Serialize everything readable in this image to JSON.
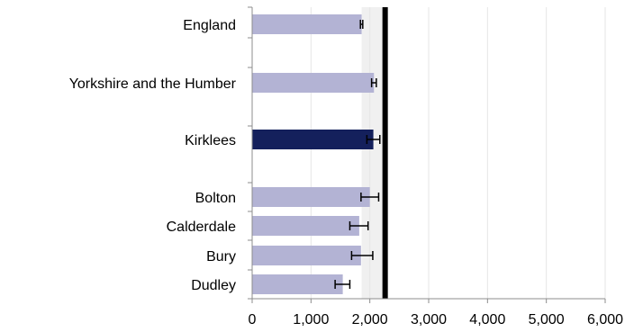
{
  "chart_data": {
    "type": "bar",
    "orientation": "horizontal",
    "title": "",
    "xlabel": "",
    "ylabel": "",
    "xlim": [
      0,
      6000
    ],
    "x_ticks": [
      0,
      1000,
      2000,
      3000,
      4000,
      5000,
      6000
    ],
    "x_tick_labels": [
      "0",
      "1,000",
      "2,000",
      "3,000",
      "4,000",
      "5,000",
      "6,000"
    ],
    "grid": "vertical gridlines",
    "reference_line": {
      "value": 2260,
      "color": "#000000"
    },
    "reference_band": {
      "from": 1860,
      "to": 2260,
      "color": "#f0f0f0"
    },
    "bars": [
      {
        "label": "England",
        "value": 1860,
        "error_low": 1840,
        "error_high": 1880,
        "color": "#b3b3d4",
        "group": "region"
      },
      {
        "label": "Yorkshire and the Humber",
        "value": 2070,
        "error_low": 2030,
        "error_high": 2110,
        "color": "#b3b3d4",
        "group": "region"
      },
      {
        "label": "Kirklees",
        "value": 2060,
        "error_low": 1950,
        "error_high": 2170,
        "color": "#14205c",
        "group": "highlight"
      },
      {
        "label": "Bolton",
        "value": 2000,
        "error_low": 1850,
        "error_high": 2150,
        "color": "#b3b3d4",
        "group": "comparator"
      },
      {
        "label": "Calderdale",
        "value": 1820,
        "error_low": 1660,
        "error_high": 1970,
        "color": "#b3b3d4",
        "group": "comparator"
      },
      {
        "label": "Bury",
        "value": 1850,
        "error_low": 1690,
        "error_high": 2050,
        "color": "#b3b3d4",
        "group": "comparator"
      },
      {
        "label": "Dudley",
        "value": 1540,
        "error_low": 1410,
        "error_high": 1660,
        "color": "#b3b3d4",
        "group": "comparator"
      }
    ]
  }
}
